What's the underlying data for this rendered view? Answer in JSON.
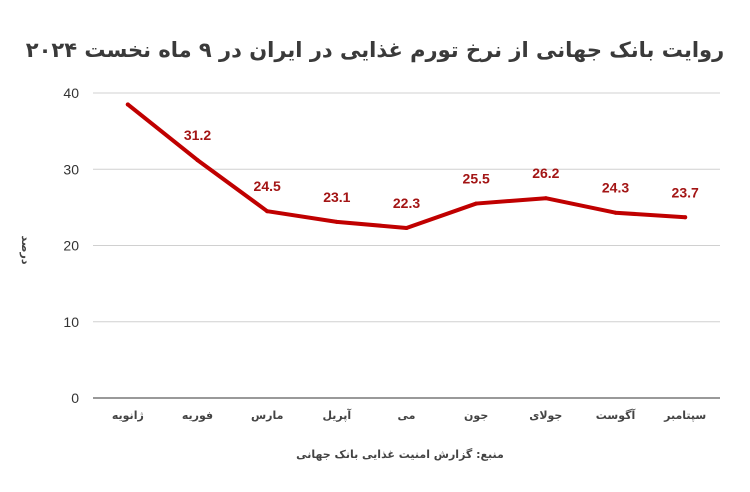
{
  "chart_data": {
    "type": "line",
    "title": "روایت بانک جهانی از نرخ تورم غذایی در ایران در ۹ ماه نخست ۲۰۲۴",
    "ylabel": "درصد",
    "xlabel": "",
    "source": "منبع: گزارش امنیت غذایی بانک جهانی",
    "categories": [
      "ژانویه",
      "فوریه",
      "مارس",
      "آپریل",
      "می",
      "جون",
      "جولای",
      "آگوست",
      "سپتامبر"
    ],
    "series": [
      {
        "values": [
          38.5,
          31.2,
          24.5,
          23.1,
          22.3,
          25.5,
          26.2,
          24.3,
          23.7
        ],
        "labels": [
          "",
          "31.2",
          "24.5",
          "23.1",
          "22.3",
          "25.5",
          "26.2",
          "24.3",
          "23.7"
        ]
      }
    ],
    "ylim": [
      0,
      40
    ],
    "yticks": [
      "0",
      "10",
      "20",
      "30",
      "40"
    ],
    "grid": true,
    "legend": "none",
    "line_color": "#c00000",
    "label_color": "#a31515"
  }
}
